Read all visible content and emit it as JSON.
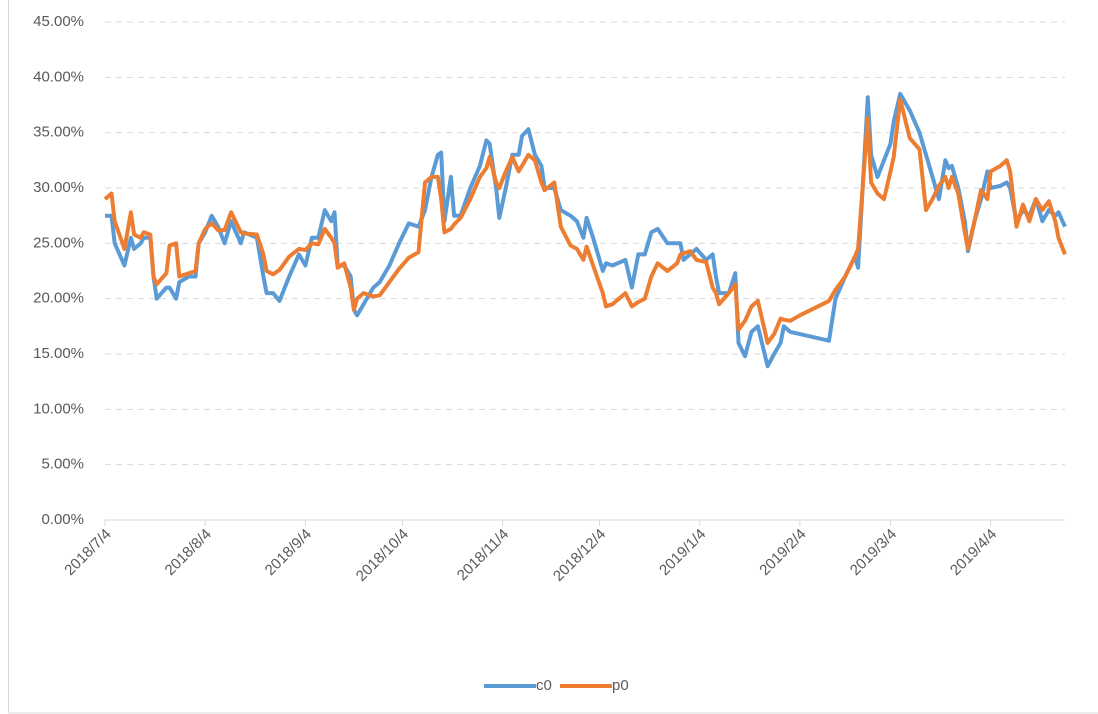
{
  "chart_data": {
    "type": "line",
    "x": [
      "2018/7/4",
      "2018/7/6",
      "2018/7/7",
      "2018/7/10",
      "2018/7/12",
      "2018/7/13",
      "2018/7/15",
      "2018/7/16",
      "2018/7/18",
      "2018/7/19",
      "2018/7/20",
      "2018/7/23",
      "2018/7/24",
      "2018/7/26",
      "2018/7/27",
      "2018/7/30",
      "2018/8/1",
      "2018/8/2",
      "2018/8/4",
      "2018/8/6",
      "2018/8/8",
      "2018/8/10",
      "2018/8/12",
      "2018/8/15",
      "2018/8/16",
      "2018/8/20",
      "2018/8/22",
      "2018/8/23",
      "2018/8/25",
      "2018/8/27",
      "2018/8/30",
      "2018/9/2",
      "2018/9/4",
      "2018/9/6",
      "2018/9/8",
      "2018/9/10",
      "2018/9/12",
      "2018/9/13",
      "2018/9/14",
      "2018/9/16",
      "2018/9/18",
      "2018/9/19",
      "2018/9/20",
      "2018/9/22",
      "2018/9/25",
      "2018/9/27",
      "2018/9/30",
      "2018/10/3",
      "2018/10/6",
      "2018/10/9",
      "2018/10/11",
      "2018/10/13",
      "2018/10/15",
      "2018/10/16",
      "2018/10/17",
      "2018/10/19",
      "2018/10/20",
      "2018/10/22",
      "2018/10/25",
      "2018/10/28",
      "2018/10/30",
      "2018/10/31",
      "2018/11/2",
      "2018/11/3",
      "2018/11/5",
      "2018/11/7",
      "2018/11/9",
      "2018/11/10",
      "2018/11/12",
      "2018/11/14",
      "2018/11/16",
      "2018/11/17",
      "2018/11/20",
      "2018/11/22",
      "2018/11/25",
      "2018/11/27",
      "2018/11/29",
      "2018/11/30",
      "2018/12/2",
      "2018/12/5",
      "2018/12/6",
      "2018/12/8",
      "2018/12/12",
      "2018/12/14",
      "2018/12/16",
      "2018/12/18",
      "2018/12/20",
      "2018/12/22",
      "2018/12/25",
      "2018/12/28",
      "2018/12/29",
      "2018/12/30",
      "2019/1/1",
      "2019/1/3",
      "2019/1/6",
      "2019/1/8",
      "2019/1/9",
      "2019/1/10",
      "2019/1/13",
      "2019/1/15",
      "2019/1/16",
      "2019/1/18",
      "2019/1/20",
      "2019/1/22",
      "2019/1/25",
      "2019/1/27",
      "2019/1/29",
      "2019/1/30",
      "2019/2/1",
      "2019/2/4",
      "2019/2/13",
      "2019/2/15",
      "2019/2/18",
      "2019/2/21",
      "2019/2/22",
      "2019/2/25",
      "2019/2/26",
      "2019/2/28",
      "2019/3/2",
      "2019/3/4",
      "2019/3/5",
      "2019/3/7",
      "2019/3/10",
      "2019/3/13",
      "2019/3/15",
      "2019/3/17",
      "2019/3/19",
      "2019/3/21",
      "2019/3/22",
      "2019/3/23",
      "2019/3/25",
      "2019/3/27",
      "2019/3/28",
      "2019/3/30",
      "2019/4/1",
      "2019/4/3",
      "2019/4/4",
      "2019/4/7",
      "2019/4/9",
      "2019/4/10",
      "2019/4/12",
      "2019/4/14",
      "2019/4/16",
      "2019/4/18",
      "2019/4/20",
      "2019/4/22",
      "2019/4/24",
      "2019/4/25",
      "2019/4/27"
    ],
    "series": [
      {
        "name": "c0",
        "color": "#5b9bd5",
        "values": [
          27.5,
          27.5,
          25,
          23,
          25.5,
          24.5,
          25,
          25.5,
          25.5,
          22,
          20,
          21,
          21,
          20,
          21.5,
          22,
          22,
          25,
          26,
          27.5,
          26.5,
          25,
          27,
          25,
          26,
          25.5,
          22,
          20.5,
          20.5,
          19.8,
          22,
          24,
          23,
          25.5,
          25.5,
          28,
          27,
          27.8,
          23,
          23,
          22,
          19,
          18.5,
          19.5,
          21,
          21.5,
          23,
          25,
          26.8,
          26.5,
          28,
          31,
          33,
          33.2,
          27,
          31,
          27.5,
          27.5,
          30,
          32,
          34.3,
          34,
          30,
          27.3,
          30,
          33,
          33,
          34.7,
          35.3,
          33,
          32,
          30,
          30,
          28,
          27.5,
          27,
          25.5,
          27.3,
          25.5,
          22.5,
          23.2,
          23,
          23.5,
          21,
          24,
          24,
          26,
          26.3,
          25,
          25,
          25,
          23.5,
          24,
          24.5,
          23.5,
          24,
          22,
          20.5,
          20.5,
          22.3,
          16,
          14.8,
          17,
          17.5,
          13.9,
          15,
          16,
          17.5,
          17,
          16.8,
          16.2,
          20,
          22,
          23.8,
          22.8,
          38.2,
          33,
          31,
          32.5,
          34,
          36,
          38.5,
          37,
          35,
          33,
          31,
          29,
          32.5,
          31.8,
          32,
          30,
          27,
          24.3,
          27,
          29,
          31.5,
          30,
          30.2,
          30.5,
          30,
          27,
          28,
          27.5,
          29,
          27,
          28,
          27.5,
          27.8,
          26.5
        ]
      },
      {
        "name": "p0",
        "color": "#ed7d31",
        "values": [
          29,
          29.5,
          27,
          24.5,
          27.8,
          25.8,
          25.5,
          26,
          25.8,
          22,
          21.3,
          22.3,
          24.8,
          25,
          22,
          22.3,
          22.5,
          25,
          26.3,
          26.8,
          26.2,
          26.2,
          27.8,
          26,
          25.9,
          25.8,
          24,
          22.5,
          22.2,
          22.6,
          23.8,
          24.5,
          24.4,
          25,
          24.9,
          26.3,
          25.5,
          25,
          22.8,
          23.2,
          21,
          19,
          20,
          20.5,
          20.2,
          20.3,
          21.5,
          22.7,
          23.7,
          24.2,
          30.5,
          31,
          31,
          29,
          26,
          26.3,
          26.7,
          27.3,
          29,
          31,
          31.8,
          32.8,
          30.5,
          30,
          31.5,
          32.8,
          31.5,
          32,
          33,
          32.5,
          30.5,
          29.8,
          30.5,
          26.5,
          24.8,
          24.5,
          23.5,
          24.7,
          23,
          20.5,
          19.3,
          19.5,
          20.5,
          19.3,
          19.7,
          20,
          22,
          23.2,
          22.5,
          23.2,
          24,
          24.1,
          24.3,
          23.5,
          23.3,
          21,
          20.5,
          19.5,
          20.5,
          21.3,
          17.2,
          18,
          19.3,
          19.8,
          16,
          16.8,
          18.2,
          18.1,
          18,
          18.5,
          19.8,
          20.8,
          22,
          23.8,
          24.5,
          36.3,
          30.5,
          29.5,
          29,
          31.5,
          32.8,
          38,
          34.5,
          33.5,
          28,
          29,
          30.2,
          31,
          30,
          31,
          29.5,
          26,
          24.5,
          27,
          29.8,
          29,
          31.5,
          32,
          32.5,
          31.5,
          26.5,
          28.5,
          27,
          29,
          28,
          28.8,
          27,
          25.5,
          24
        ]
      }
    ],
    "xlim": [
      "2018/7/4",
      "2019/4/27"
    ],
    "xticks": [
      "2018/7/4",
      "2018/8/4",
      "2018/9/4",
      "2018/10/4",
      "2018/11/4",
      "2018/12/4",
      "2019/1/4",
      "2019/2/4",
      "2019/3/4",
      "2019/4/4"
    ],
    "ylim": [
      0,
      45
    ],
    "yticks": [
      {
        "value": 0,
        "label": "0.00%"
      },
      {
        "value": 5,
        "label": "5.00%"
      },
      {
        "value": 10,
        "label": "10.00%"
      },
      {
        "value": 15,
        "label": "15.00%"
      },
      {
        "value": 20,
        "label": "20.00%"
      },
      {
        "value": 25,
        "label": "25.00%"
      },
      {
        "value": 30,
        "label": "30.00%"
      },
      {
        "value": 35,
        "label": "35.00%"
      },
      {
        "value": 40,
        "label": "40.00%"
      },
      {
        "value": 45,
        "label": "45.00%"
      }
    ],
    "grid": true
  }
}
